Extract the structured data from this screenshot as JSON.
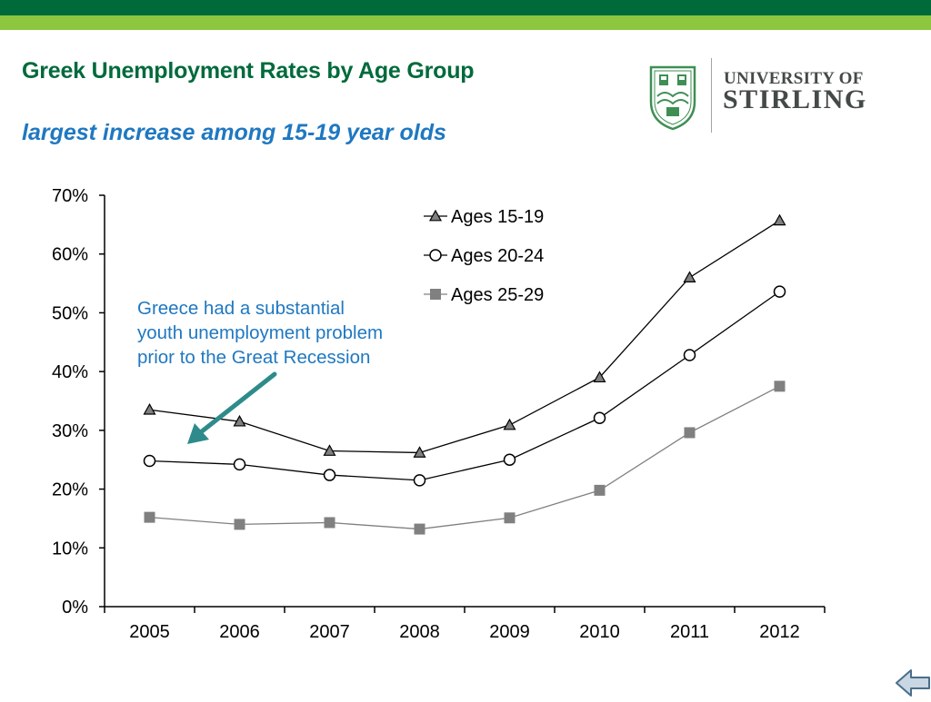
{
  "slide": {
    "title": "Greek Unemployment Rates by Age Group",
    "subtitle": "largest increase among 15-19 year olds",
    "logo": {
      "line1": "UNIVERSITY OF",
      "line2": "STIRLING"
    },
    "annotation": {
      "lines": [
        "Greece had a substantial",
        "youth unemployment problem",
        "prior to the Great Recession"
      ],
      "color": "#1f78c1"
    },
    "colors": {
      "header_dark": "#006a3b",
      "header_light": "#8dc63f",
      "title": "#006a3b",
      "subtitle": "#1f78c1",
      "arrow": "#2e8b8b"
    },
    "nav_icon": "back-arrow-icon"
  },
  "chart_data": {
    "type": "line",
    "categories": [
      "2005",
      "2006",
      "2007",
      "2008",
      "2009",
      "2010",
      "2011",
      "2012"
    ],
    "ylim": [
      0,
      70
    ],
    "y_ticks": [
      0,
      10,
      20,
      30,
      40,
      50,
      60,
      70
    ],
    "y_tick_labels": [
      "0%",
      "10%",
      "20%",
      "30%",
      "40%",
      "50%",
      "60%",
      "70%"
    ],
    "grid": false,
    "legend_position": "top-right",
    "series": [
      {
        "name": "Ages 15-19",
        "values": [
          33.5,
          31.5,
          26.5,
          26.2,
          30.9,
          39.0,
          56.0,
          65.7
        ],
        "marker": "triangle",
        "line_color": "#000000",
        "marker_fill": "#808080"
      },
      {
        "name": "Ages 20-24",
        "values": [
          24.8,
          24.2,
          22.4,
          21.5,
          25.0,
          32.1,
          42.8,
          53.6
        ],
        "marker": "circle",
        "line_color": "#000000",
        "marker_fill": "#ffffff"
      },
      {
        "name": "Ages 25-29",
        "values": [
          15.2,
          14.0,
          14.3,
          13.2,
          15.1,
          19.8,
          29.6,
          37.5
        ],
        "marker": "square",
        "line_color": "#808080",
        "marker_fill": "#808080"
      }
    ],
    "title": "",
    "xlabel": "",
    "ylabel": ""
  }
}
